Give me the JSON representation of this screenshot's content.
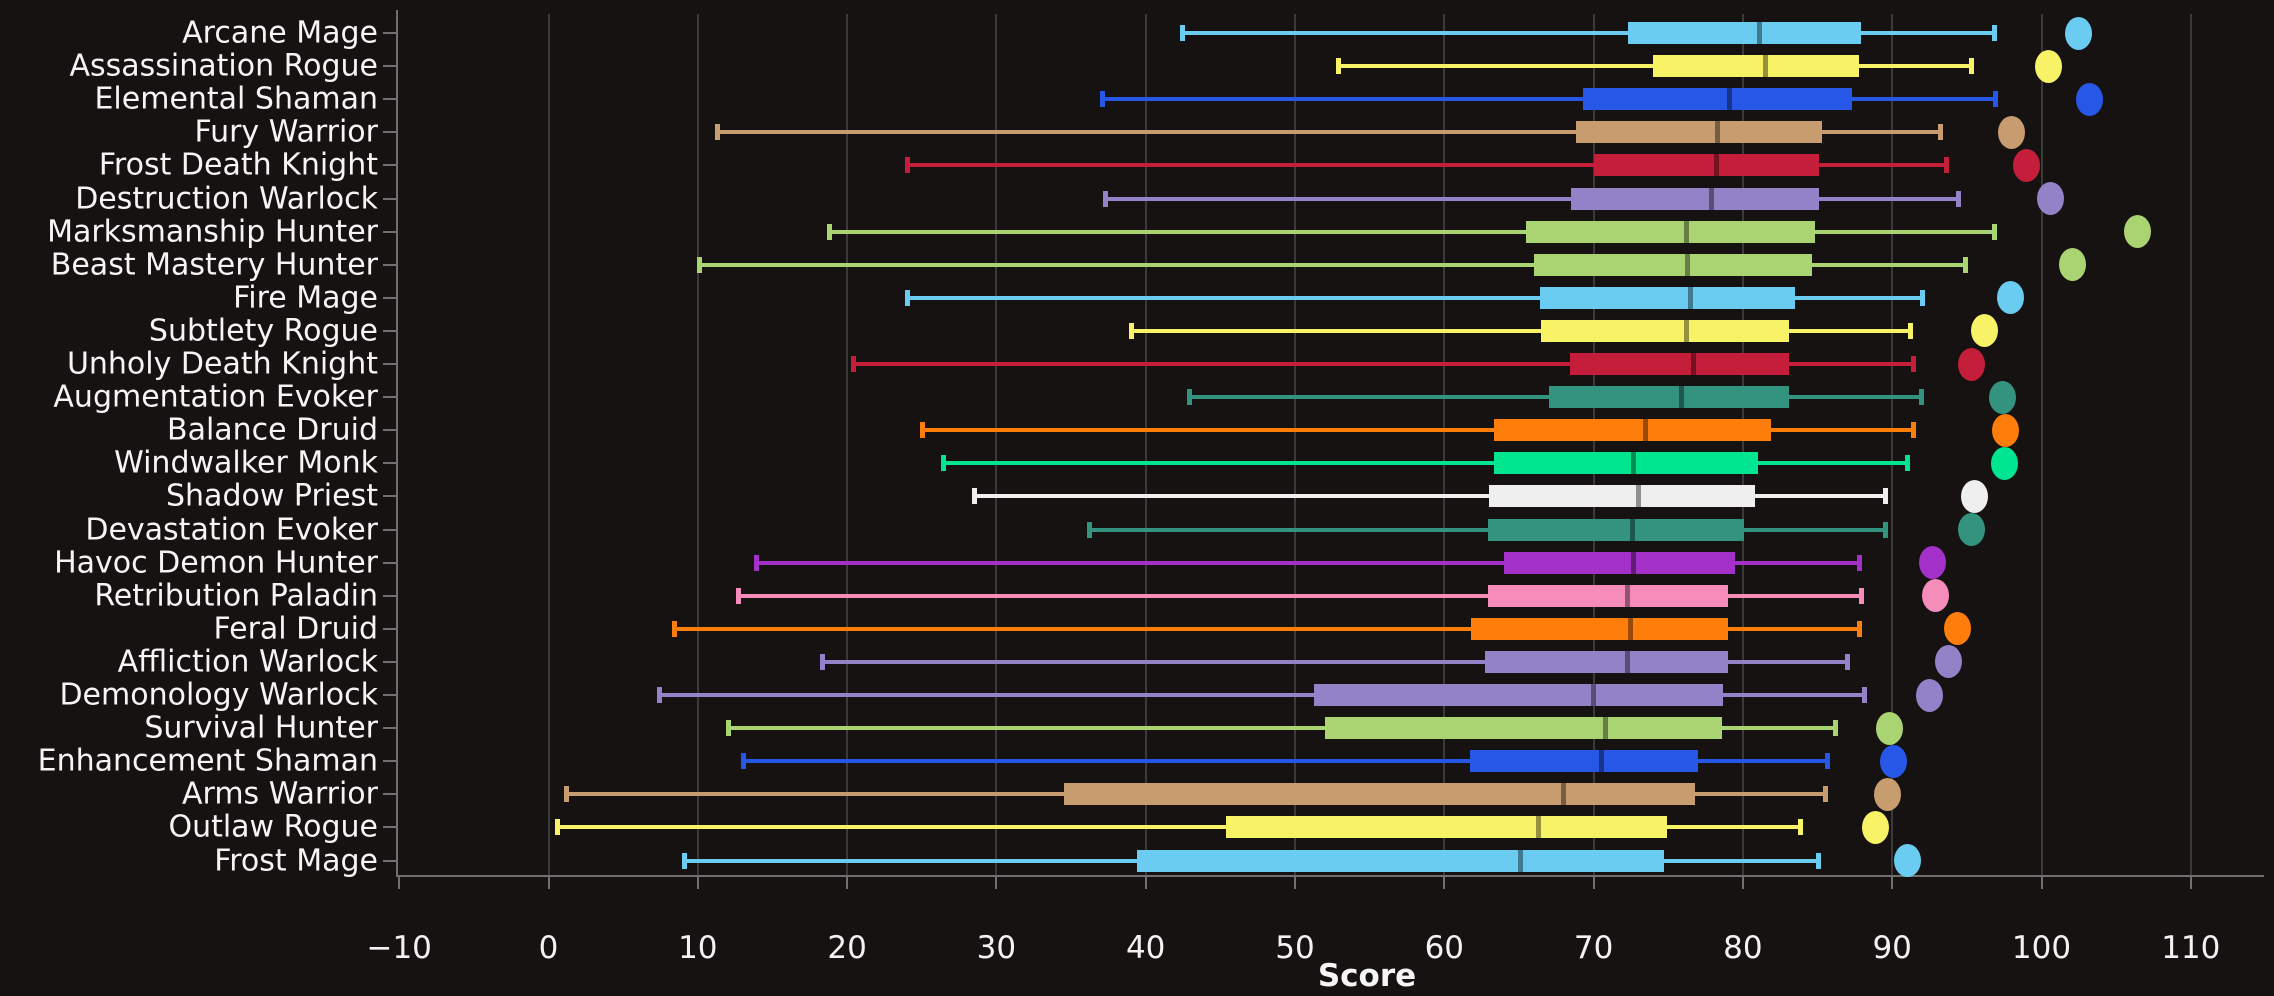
{
  "chart_data": {
    "type": "boxplot",
    "orientation": "horizontal",
    "title": "",
    "xlabel": "Score",
    "x_ticks": [
      -10,
      0,
      10,
      20,
      30,
      40,
      50,
      60,
      70,
      80,
      90,
      100,
      110
    ],
    "x_tick_labels": [
      "−10",
      "0",
      "10",
      "20",
      "30",
      "40",
      "50",
      "60",
      "70",
      "80",
      "90",
      "100",
      "110"
    ],
    "xlim": [
      -10.2,
      115.9
    ],
    "grid": "vertical-gridlines-on",
    "legend": "none",
    "background_color": "#161212",
    "gridline_color": "#3a3a3a",
    "axis_color": "#6f6f6f",
    "text_color": "#f2f2f2",
    "median_overlay_color": "rgba(0,0,0,0.4)",
    "rows": [
      {
        "label": "Arcane Mage",
        "color": "#69CCF0",
        "low": 42.4,
        "q1": 72.3,
        "median": 81.1,
        "q3": 87.9,
        "high": 96.8,
        "outliers": [
          102.5
        ]
      },
      {
        "label": "Assassination Rogue",
        "color": "#F8F266",
        "low": 52.9,
        "q1": 74.0,
        "median": 81.5,
        "q3": 87.8,
        "high": 95.3,
        "outliers": [
          100.5
        ]
      },
      {
        "label": "Elemental Shaman",
        "color": "#2757E6",
        "low": 37.1,
        "q1": 69.3,
        "median": 79.1,
        "q3": 87.3,
        "high": 96.9,
        "outliers": [
          103.2
        ]
      },
      {
        "label": "Fury Warrior",
        "color": "#C79C6E",
        "low": 11.3,
        "q1": 68.8,
        "median": 78.3,
        "q3": 85.3,
        "high": 93.2,
        "outliers": [
          98.0
        ]
      },
      {
        "label": "Frost Death Knight",
        "color": "#C41E3A",
        "low": 24.0,
        "q1": 70.0,
        "median": 78.2,
        "q3": 85.1,
        "high": 93.6,
        "outliers": [
          99.0
        ]
      },
      {
        "label": "Destruction Warlock",
        "color": "#9482C9",
        "low": 37.3,
        "q1": 68.5,
        "median": 77.9,
        "q3": 85.1,
        "high": 94.4,
        "outliers": [
          100.6
        ]
      },
      {
        "label": "Marksmanship Hunter",
        "color": "#AAD372",
        "low": 18.8,
        "q1": 65.5,
        "median": 76.2,
        "q3": 84.8,
        "high": 96.8,
        "outliers": [
          106.4
        ]
      },
      {
        "label": "Beast Mastery Hunter",
        "color": "#AAD372",
        "low": 10.1,
        "q1": 66.0,
        "median": 76.3,
        "q3": 84.6,
        "high": 94.9,
        "outliers": [
          102.1
        ]
      },
      {
        "label": "Fire Mage",
        "color": "#69CCF0",
        "low": 24.0,
        "q1": 66.4,
        "median": 76.5,
        "q3": 83.5,
        "high": 92.0,
        "outliers": [
          97.9
        ]
      },
      {
        "label": "Subtlety Rogue",
        "color": "#F8F266",
        "low": 39.0,
        "q1": 66.5,
        "median": 76.2,
        "q3": 83.1,
        "high": 91.2,
        "outliers": [
          96.2
        ]
      },
      {
        "label": "Unholy Death Knight",
        "color": "#C41E3A",
        "low": 20.4,
        "q1": 68.4,
        "median": 76.7,
        "q3": 83.1,
        "high": 91.4,
        "outliers": [
          95.3
        ]
      },
      {
        "label": "Augmentation Evoker",
        "color": "#33937F",
        "low": 42.9,
        "q1": 67.0,
        "median": 75.9,
        "q3": 83.1,
        "high": 91.9,
        "outliers": [
          97.4
        ]
      },
      {
        "label": "Balance Druid",
        "color": "#FF7D0A",
        "low": 25.0,
        "q1": 63.3,
        "median": 73.5,
        "q3": 81.9,
        "high": 91.4,
        "outliers": [
          97.6
        ]
      },
      {
        "label": "Windwalker Monk",
        "color": "#00E690",
        "low": 26.4,
        "q1": 63.3,
        "median": 72.7,
        "q3": 81.0,
        "high": 91.0,
        "outliers": [
          97.5
        ]
      },
      {
        "label": "Shadow Priest",
        "color": "#EFEFEF",
        "low": 28.5,
        "q1": 63.0,
        "median": 73.0,
        "q3": 80.8,
        "high": 89.5,
        "outliers": [
          95.5
        ]
      },
      {
        "label": "Devastation Evoker",
        "color": "#33937F",
        "low": 36.2,
        "q1": 62.9,
        "median": 72.6,
        "q3": 80.1,
        "high": 89.5,
        "outliers": [
          95.3
        ]
      },
      {
        "label": "Havoc Demon Hunter",
        "color": "#A330C9",
        "low": 13.9,
        "q1": 64.0,
        "median": 72.7,
        "q3": 79.5,
        "high": 87.8,
        "outliers": [
          92.7
        ]
      },
      {
        "label": "Retribution Paladin",
        "color": "#F58CBA",
        "low": 12.7,
        "q1": 62.9,
        "median": 72.3,
        "q3": 79.0,
        "high": 87.9,
        "outliers": [
          92.9
        ]
      },
      {
        "label": "Feral Druid",
        "color": "#FF7D0A",
        "low": 8.4,
        "q1": 61.8,
        "median": 72.5,
        "q3": 79.0,
        "high": 87.8,
        "outliers": [
          94.4
        ]
      },
      {
        "label": "Affliction Warlock",
        "color": "#9482C9",
        "low": 18.3,
        "q1": 62.7,
        "median": 72.3,
        "q3": 79.0,
        "high": 87.0,
        "outliers": [
          93.8
        ]
      },
      {
        "label": "Demonology Warlock",
        "color": "#9482C9",
        "low": 7.4,
        "q1": 51.3,
        "median": 70.0,
        "q3": 78.7,
        "high": 88.1,
        "outliers": [
          92.5
        ]
      },
      {
        "label": "Survival Hunter",
        "color": "#AAD372",
        "low": 12.0,
        "q1": 52.0,
        "median": 70.8,
        "q3": 78.6,
        "high": 86.2,
        "outliers": [
          89.8
        ]
      },
      {
        "label": "Enhancement Shaman",
        "color": "#2757E6",
        "low": 13.0,
        "q1": 61.7,
        "median": 70.5,
        "q3": 77.0,
        "high": 85.6,
        "outliers": [
          90.1
        ]
      },
      {
        "label": "Arms Warrior",
        "color": "#C79C6E",
        "low": 1.2,
        "q1": 34.5,
        "median": 68.0,
        "q3": 76.8,
        "high": 85.5,
        "outliers": [
          89.7
        ]
      },
      {
        "label": "Outlaw Rogue",
        "color": "#F8F266",
        "low": 0.6,
        "q1": 45.4,
        "median": 66.3,
        "q3": 74.9,
        "high": 83.8,
        "outliers": [
          88.9
        ]
      },
      {
        "label": "Frost Mage",
        "color": "#69CCF0",
        "low": 9.1,
        "q1": 39.4,
        "median": 65.1,
        "q3": 74.7,
        "high": 85.0,
        "outliers": [
          91.0
        ]
      }
    ]
  }
}
